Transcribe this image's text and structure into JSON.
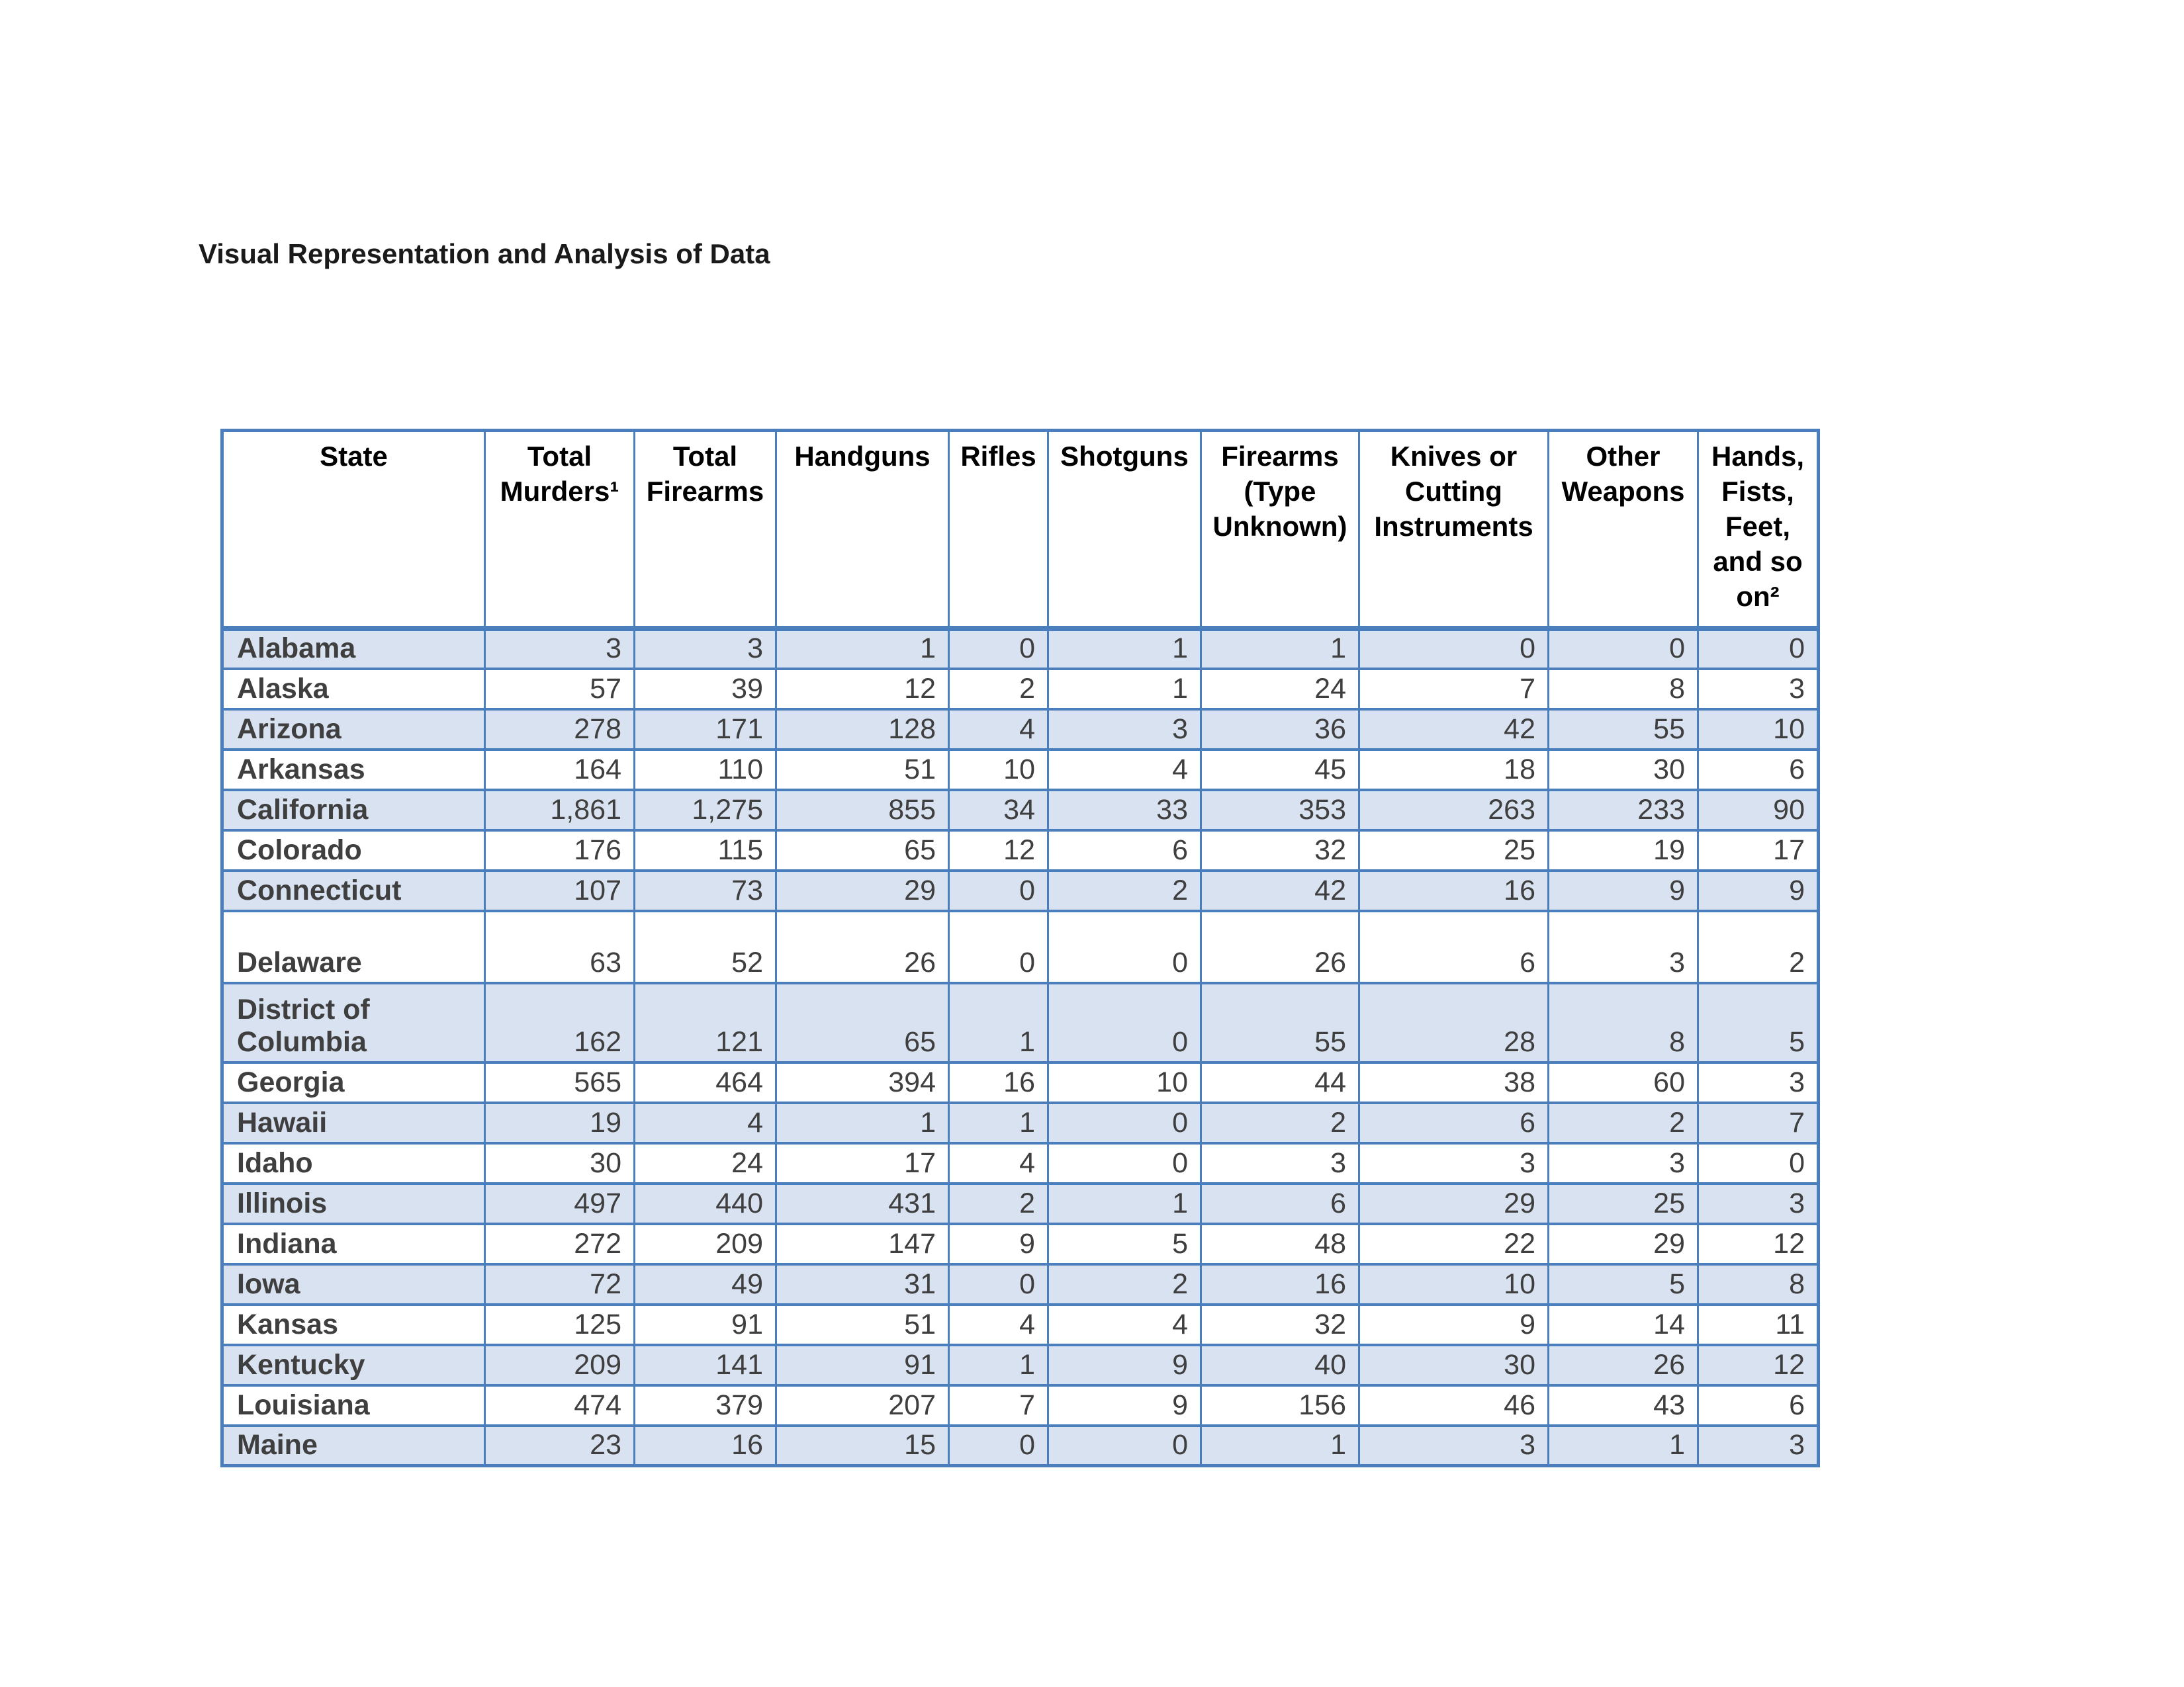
{
  "page": {
    "title": "Visual Representation and Analysis of Data"
  },
  "colors": {
    "table_border": "#4A7EBD",
    "band_fill": "#D9E2F0",
    "header_text": "#000000",
    "body_text": "#3F3F3F"
  },
  "table": {
    "headers": [
      "State",
      "Total Murders¹",
      "Total Firearms",
      "Handguns",
      "Rifles",
      "Shotguns",
      "Firearms (Type Unknown)",
      "Knives or Cutting Instruments",
      "Other Weapons",
      "Hands, Fists, Feet, and so on²"
    ],
    "rows": [
      {
        "state": "Alabama",
        "values": [
          "3",
          "3",
          "1",
          "0",
          "1",
          "1",
          "0",
          "0",
          "0"
        ]
      },
      {
        "state": "Alaska",
        "values": [
          "57",
          "39",
          "12",
          "2",
          "1",
          "24",
          "7",
          "8",
          "3"
        ]
      },
      {
        "state": "Arizona",
        "values": [
          "278",
          "171",
          "128",
          "4",
          "3",
          "36",
          "42",
          "55",
          "10"
        ]
      },
      {
        "state": "Arkansas",
        "values": [
          "164",
          "110",
          "51",
          "10",
          "4",
          "45",
          "18",
          "30",
          "6"
        ]
      },
      {
        "state": "California",
        "values": [
          "1,861",
          "1,275",
          "855",
          "34",
          "33",
          "353",
          "263",
          "233",
          "90"
        ]
      },
      {
        "state": "Colorado",
        "values": [
          "176",
          "115",
          "65",
          "12",
          "6",
          "32",
          "25",
          "19",
          "17"
        ]
      },
      {
        "state": "Connecticut",
        "values": [
          "107",
          "73",
          "29",
          "0",
          "2",
          "42",
          "16",
          "9",
          "9"
        ]
      },
      {
        "state": "Delaware",
        "values": [
          "63",
          "52",
          "26",
          "0",
          "0",
          "26",
          "6",
          "3",
          "2"
        ]
      },
      {
        "state": "District of Columbia",
        "values": [
          "162",
          "121",
          "65",
          "1",
          "0",
          "55",
          "28",
          "8",
          "5"
        ]
      },
      {
        "state": "Georgia",
        "values": [
          "565",
          "464",
          "394",
          "16",
          "10",
          "44",
          "38",
          "60",
          "3"
        ]
      },
      {
        "state": "Hawaii",
        "values": [
          "19",
          "4",
          "1",
          "1",
          "0",
          "2",
          "6",
          "2",
          "7"
        ]
      },
      {
        "state": "Idaho",
        "values": [
          "30",
          "24",
          "17",
          "4",
          "0",
          "3",
          "3",
          "3",
          "0"
        ]
      },
      {
        "state": "Illinois",
        "values": [
          "497",
          "440",
          "431",
          "2",
          "1",
          "6",
          "29",
          "25",
          "3"
        ]
      },
      {
        "state": "Indiana",
        "values": [
          "272",
          "209",
          "147",
          "9",
          "5",
          "48",
          "22",
          "29",
          "12"
        ]
      },
      {
        "state": "Iowa",
        "values": [
          "72",
          "49",
          "31",
          "0",
          "2",
          "16",
          "10",
          "5",
          "8"
        ]
      },
      {
        "state": "Kansas",
        "values": [
          "125",
          "91",
          "51",
          "4",
          "4",
          "32",
          "9",
          "14",
          "11"
        ]
      },
      {
        "state": "Kentucky",
        "values": [
          "209",
          "141",
          "91",
          "1",
          "9",
          "40",
          "30",
          "26",
          "12"
        ]
      },
      {
        "state": "Louisiana",
        "values": [
          "474",
          "379",
          "207",
          "7",
          "9",
          "156",
          "46",
          "43",
          "6"
        ]
      },
      {
        "state": "Maine",
        "values": [
          "23",
          "16",
          "15",
          "0",
          "0",
          "1",
          "3",
          "1",
          "3"
        ]
      }
    ]
  }
}
